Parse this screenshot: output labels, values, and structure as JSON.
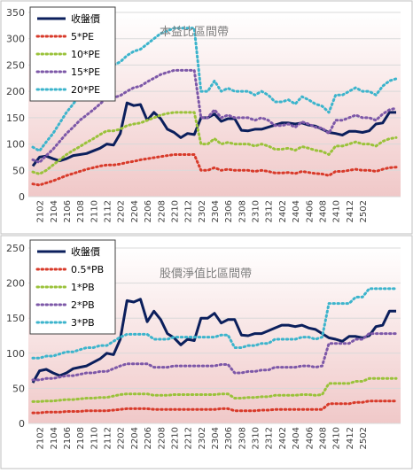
{
  "chart_data": [
    {
      "type": "line",
      "title": "本益比區間帶",
      "ylim": [
        0,
        350
      ],
      "yticks": [
        0,
        50,
        100,
        150,
        200,
        250,
        300,
        350
      ],
      "xticks": [
        "2102",
        "2104",
        "2106",
        "2108",
        "2110",
        "2112",
        "2202",
        "2204",
        "2206",
        "2208",
        "2210",
        "2212",
        "2302",
        "2304",
        "2306",
        "2308",
        "2310",
        "2312",
        "2402",
        "2404",
        "2406",
        "2408",
        "2410",
        "2412",
        "2502"
      ],
      "legend_position": "top-left",
      "grid": true,
      "series": [
        {
          "name": "收盤價",
          "color": "#0b1f5c",
          "style": "solid",
          "values": [
            58,
            75,
            77,
            72,
            68,
            72,
            78,
            80,
            82,
            87,
            92,
            100,
            98,
            120,
            178,
            173,
            175,
            145,
            160,
            148,
            128,
            122,
            112,
            120,
            118,
            150,
            150,
            157,
            143,
            148,
            148,
            126,
            125,
            128,
            128,
            132,
            136,
            140,
            140,
            138,
            140,
            136,
            134,
            128,
            122,
            120,
            117,
            124,
            124,
            122,
            125,
            138,
            140,
            160,
            160
          ]
        },
        {
          "name": "5*PE",
          "color": "#d83a2a",
          "style": "dotted",
          "values": [
            24,
            22,
            26,
            30,
            35,
            40,
            44,
            48,
            52,
            55,
            58,
            60,
            60,
            62,
            65,
            67,
            70,
            72,
            74,
            76,
            78,
            80,
            80,
            80,
            80,
            50,
            50,
            55,
            50,
            52,
            50,
            50,
            50,
            48,
            50,
            48,
            45,
            45,
            46,
            44,
            48,
            46,
            44,
            43,
            40,
            48,
            48,
            50,
            52,
            50,
            50,
            48,
            52,
            55,
            56
          ]
        },
        {
          "name": "10*PE",
          "color": "#9ac23a",
          "style": "dotted",
          "values": [
            47,
            43,
            50,
            60,
            70,
            80,
            88,
            95,
            103,
            110,
            118,
            125,
            125,
            128,
            135,
            138,
            140,
            145,
            150,
            155,
            158,
            160,
            160,
            160,
            160,
            100,
            100,
            110,
            100,
            103,
            100,
            100,
            100,
            96,
            100,
            96,
            90,
            90,
            92,
            88,
            95,
            92,
            88,
            86,
            80,
            96,
            96,
            100,
            104,
            100,
            100,
            96,
            105,
            110,
            112
          ]
        },
        {
          "name": "15*PE",
          "color": "#7d58a8",
          "style": "dotted",
          "values": [
            70,
            65,
            78,
            90,
            105,
            120,
            132,
            145,
            155,
            165,
            176,
            188,
            188,
            192,
            200,
            207,
            210,
            218,
            225,
            232,
            236,
            240,
            240,
            240,
            240,
            150,
            150,
            165,
            150,
            155,
            150,
            150,
            150,
            145,
            150,
            145,
            135,
            135,
            138,
            132,
            142,
            138,
            132,
            130,
            120,
            145,
            145,
            150,
            155,
            150,
            150,
            145,
            157,
            165,
            168
          ]
        },
        {
          "name": "20*PE",
          "color": "#3cb4cc",
          "style": "dotted",
          "values": [
            94,
            87,
            104,
            120,
            140,
            160,
            176,
            193,
            206,
            220,
            235,
            250,
            250,
            256,
            268,
            276,
            280,
            290,
            300,
            310,
            315,
            320,
            320,
            320,
            320,
            200,
            200,
            220,
            200,
            206,
            200,
            200,
            200,
            193,
            200,
            193,
            180,
            180,
            184,
            176,
            190,
            184,
            176,
            172,
            160,
            193,
            193,
            200,
            207,
            200,
            200,
            193,
            210,
            220,
            224
          ]
        }
      ]
    },
    {
      "type": "line",
      "title": "股價淨值比區間帶",
      "ylim": [
        0,
        250
      ],
      "yticks": [
        0,
        50,
        100,
        150,
        200,
        250
      ],
      "xticks": [
        "2102",
        "2104",
        "2106",
        "2108",
        "2110",
        "2112",
        "2202",
        "2204",
        "2206",
        "2208",
        "2210",
        "2212",
        "2302",
        "2304",
        "2306",
        "2308",
        "2310",
        "2312",
        "2402",
        "2404",
        "2406",
        "2408",
        "2410",
        "2412",
        "2502"
      ],
      "legend_position": "top-left",
      "grid": true,
      "series": [
        {
          "name": "收盤價",
          "color": "#0b1f5c",
          "style": "solid",
          "values": [
            58,
            75,
            77,
            72,
            68,
            72,
            78,
            80,
            82,
            87,
            92,
            100,
            98,
            120,
            175,
            173,
            177,
            145,
            160,
            148,
            128,
            122,
            112,
            120,
            118,
            150,
            150,
            157,
            143,
            148,
            148,
            126,
            125,
            128,
            128,
            132,
            136,
            140,
            140,
            138,
            140,
            136,
            134,
            128,
            122,
            120,
            117,
            124,
            124,
            122,
            125,
            138,
            140,
            160,
            160
          ]
        },
        {
          "name": "0.5*PB",
          "color": "#d83a2a",
          "style": "dotted",
          "values": [
            15,
            15,
            16,
            16,
            16,
            17,
            17,
            17,
            18,
            18,
            18,
            18,
            19,
            20,
            21,
            21,
            21,
            21,
            20,
            20,
            20,
            20,
            20,
            20,
            20,
            20,
            20,
            20,
            21,
            21,
            18,
            18,
            18,
            18,
            19,
            19,
            20,
            20,
            20,
            20,
            20,
            20,
            20,
            20,
            28,
            28,
            28,
            28,
            30,
            30,
            32,
            32,
            32,
            32,
            32
          ]
        },
        {
          "name": "1*PB",
          "color": "#9ac23a",
          "style": "dotted",
          "values": [
            31,
            31,
            32,
            32,
            33,
            34,
            34,
            35,
            36,
            36,
            37,
            37,
            39,
            41,
            42,
            42,
            42,
            42,
            40,
            40,
            40,
            41,
            41,
            41,
            41,
            41,
            41,
            41,
            42,
            42,
            36,
            36,
            37,
            37,
            38,
            38,
            40,
            40,
            40,
            40,
            41,
            41,
            40,
            41,
            57,
            57,
            57,
            57,
            60,
            60,
            64,
            64,
            64,
            64,
            64
          ]
        },
        {
          "name": "2*PB",
          "color": "#7d58a8",
          "style": "dotted",
          "values": [
            62,
            62,
            64,
            64,
            66,
            68,
            68,
            70,
            72,
            72,
            74,
            74,
            78,
            82,
            85,
            85,
            85,
            85,
            80,
            80,
            80,
            82,
            82,
            82,
            82,
            82,
            82,
            82,
            84,
            84,
            72,
            72,
            74,
            74,
            76,
            76,
            80,
            80,
            80,
            80,
            82,
            82,
            80,
            82,
            114,
            114,
            114,
            114,
            120,
            120,
            128,
            128,
            128,
            128,
            128
          ]
        },
        {
          "name": "3*PB",
          "color": "#3cb4cc",
          "style": "dotted",
          "values": [
            93,
            93,
            96,
            96,
            99,
            102,
            102,
            105,
            108,
            108,
            111,
            111,
            117,
            123,
            127,
            127,
            127,
            127,
            120,
            120,
            120,
            123,
            123,
            123,
            123,
            123,
            123,
            123,
            126,
            126,
            108,
            108,
            111,
            111,
            114,
            114,
            120,
            120,
            120,
            120,
            123,
            123,
            120,
            123,
            171,
            171,
            171,
            171,
            180,
            180,
            192,
            192,
            192,
            192,
            192
          ]
        }
      ]
    }
  ]
}
